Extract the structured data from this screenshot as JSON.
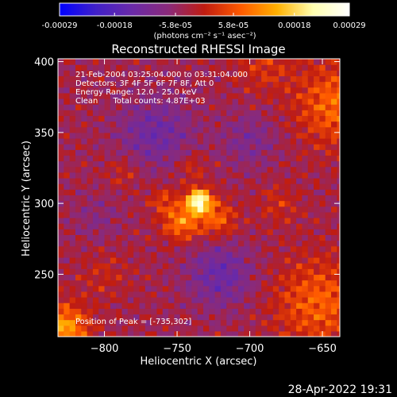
{
  "colorbar": {
    "tick_labels": [
      "-0.00029",
      "-0.00018",
      "-5.8e-05",
      "5.8e-05",
      "0.00018",
      "0.00029"
    ],
    "ticks": [
      -0.00029,
      -0.00018,
      -5.8e-05,
      5.8e-05,
      0.00018,
      0.00029
    ],
    "range": [
      -0.00029,
      0.00029
    ],
    "unit_label": "(photons cm⁻² s⁻¹ asec⁻²)",
    "colormap": [
      "#0000ff",
      "#4020c8",
      "#6a2aa8",
      "#8a2a7a",
      "#c01c10",
      "#ff5a00",
      "#ffb000",
      "#ffffb0",
      "#ffffff"
    ]
  },
  "image": {
    "annotations": [
      "21-Feb-2004 03:25:04.000 to 03:31:04.000",
      "Detectors: 3F 4F 5F 6F 7F 8F, Att 0",
      "Energy Range: 12.0 - 25.0 keV",
      "Clean      Total counts: 4.87E+03"
    ],
    "peak_label": "Position of Peak = [-735,302]"
  },
  "footer": {
    "timestamp": "28-Apr-2022 19:31"
  },
  "chart_data": {
    "type": "heatmap",
    "title": "Reconstructed RHESSI Image",
    "xlabel": "Heliocentric X (arcsec)",
    "ylabel": "Heliocentric Y (arcsec)",
    "xlim": [
      -832,
      -638
    ],
    "ylim": [
      206,
      402
    ],
    "xticks": [
      -800,
      -750,
      -700,
      -650
    ],
    "xtick_labels": [
      "−800",
      "−750",
      "−700",
      "−650"
    ],
    "yticks": [
      250,
      300,
      350,
      400
    ],
    "ytick_labels": [
      "250",
      "300",
      "350",
      "400"
    ],
    "grid": false,
    "peak": {
      "x": -735,
      "y": 302
    },
    "sources": [
      {
        "x": -735,
        "y": 302,
        "amplitude": 0.00029,
        "sigma": 6
      },
      {
        "x": -747,
        "y": 287,
        "amplitude": 0.00014,
        "sigma": 9
      },
      {
        "x": -722,
        "y": 289,
        "amplitude": 0.00011,
        "sigma": 9
      },
      {
        "x": -760,
        "y": 303,
        "amplitude": 7e-05,
        "sigma": 7
      },
      {
        "x": -740,
        "y": 326,
        "amplitude": 6e-05,
        "sigma": 7
      },
      {
        "x": -787,
        "y": 322,
        "amplitude": 5e-05,
        "sigma": 8
      },
      {
        "x": -800,
        "y": 250,
        "amplitude": 4e-05,
        "sigma": 12
      },
      {
        "x": -640,
        "y": 370,
        "amplitude": 0.00012,
        "sigma": 20
      },
      {
        "x": -652,
        "y": 230,
        "amplitude": 0.00011,
        "sigma": 22
      },
      {
        "x": -828,
        "y": 212,
        "amplitude": 0.00017,
        "sigma": 12
      },
      {
        "x": -690,
        "y": 398,
        "amplitude": 6e-05,
        "sigma": 14
      },
      {
        "x": -680,
        "y": 300,
        "amplitude": 5e-05,
        "sigma": 10
      }
    ],
    "dark_regions": [
      {
        "x": -765,
        "y": 350,
        "amplitude": -9e-05,
        "sigma": 18
      },
      {
        "x": -720,
        "y": 250,
        "amplitude": -0.0001,
        "sigma": 16
      },
      {
        "x": -700,
        "y": 345,
        "amplitude": -6e-05,
        "sigma": 14
      },
      {
        "x": -805,
        "y": 290,
        "amplitude": -4e-05,
        "sigma": 12
      }
    ]
  }
}
